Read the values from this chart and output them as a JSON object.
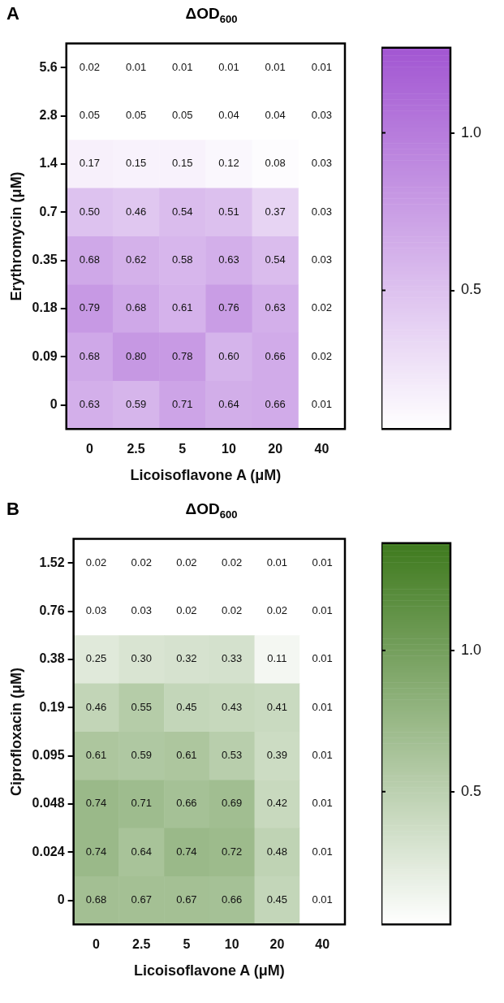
{
  "chart_data": [
    {
      "type": "heatmap",
      "title": "ΔOD$_{600}$",
      "annotations": [
        "A"
      ],
      "xlabel": "Licoisoflavone A (μM)",
      "ylabel": "Erythromycin (μM)",
      "categories": [
        "0",
        "2.5",
        "5",
        "10",
        "20",
        "40"
      ],
      "y_categories": [
        "5.6",
        "2.8",
        "1.4",
        "0.7",
        "0.35",
        "0.18",
        "0.09",
        "0"
      ],
      "cells": [
        [
          0.02,
          0.01,
          0.01,
          0.01,
          0.01,
          0.01
        ],
        [
          0.05,
          0.05,
          0.05,
          0.04,
          0.04,
          0.03
        ],
        [
          0.17,
          0.15,
          0.15,
          0.12,
          0.08,
          0.03
        ],
        [
          0.5,
          0.46,
          0.54,
          0.51,
          0.37,
          0.03
        ],
        [
          0.68,
          0.62,
          0.58,
          0.63,
          0.54,
          0.03
        ],
        [
          0.79,
          0.68,
          0.61,
          0.76,
          0.63,
          0.02
        ],
        [
          0.68,
          0.8,
          0.78,
          0.6,
          0.66,
          0.02
        ],
        [
          0.63,
          0.59,
          0.71,
          0.64,
          0.66,
          0.01
        ]
      ],
      "cell_labels": [
        [
          "0.02",
          "0.01",
          "0.01",
          "0.01",
          "0.01",
          "0.01"
        ],
        [
          "0.05",
          "0.05",
          "0.05",
          "0.04",
          "0.04",
          "0.03"
        ],
        [
          "0.17",
          "0.15",
          "0.15",
          "0.12",
          "0.08",
          "0.03"
        ],
        [
          "0.50",
          "0.46",
          "0.54",
          "0.51",
          "0.37",
          "0.03"
        ],
        [
          "0.68",
          "0.62",
          "0.58",
          "0.63",
          "0.54",
          "0.03"
        ],
        [
          "0.79",
          "0.68",
          "0.61",
          "0.76",
          "0.63",
          "0.02"
        ],
        [
          "0.68",
          "0.80",
          "0.78",
          "0.60",
          "0.66",
          "0.02"
        ],
        [
          "0.63",
          "0.59",
          "0.71",
          "0.64",
          "0.66",
          "0.01"
        ]
      ],
      "data_labels": true,
      "clim": [
        0.06,
        1.27
      ],
      "cticks": [
        0.5,
        {
          "value": 1.0,
          "label": "1.0"
        }
      ],
      "colors": [
        "#ffffff",
        "#a256d2"
      ]
    },
    {
      "type": "heatmap",
      "title": "ΔOD$_{600}$",
      "annotations": [
        "B"
      ],
      "xlabel": "Licoisoflavone A (μM)",
      "ylabel": "Ciprofloxacin (μM)",
      "categories": [
        "0",
        "2.5",
        "5",
        "10",
        "20",
        "40"
      ],
      "y_categories": [
        "1.52",
        "0.76",
        "0.38",
        "0.19",
        "0.095",
        "0.048",
        "0.024",
        "0"
      ],
      "cells": [
        [
          0.02,
          0.02,
          0.02,
          0.02,
          0.01,
          0.01
        ],
        [
          0.03,
          0.03,
          0.02,
          0.02,
          0.02,
          0.01
        ],
        [
          0.25,
          0.3,
          0.32,
          0.33,
          0.11,
          0.01
        ],
        [
          0.46,
          0.55,
          0.45,
          0.43,
          0.41,
          0.01
        ],
        [
          0.61,
          0.59,
          0.61,
          0.53,
          0.39,
          0.01
        ],
        [
          0.74,
          0.71,
          0.66,
          0.69,
          0.42,
          0.01
        ],
        [
          0.74,
          0.64,
          0.74,
          0.72,
          0.48,
          0.01
        ],
        [
          0.68,
          0.67,
          0.67,
          0.66,
          0.45,
          0.01
        ]
      ],
      "cell_labels": [
        [
          "0.02",
          "0.02",
          "0.02",
          "0.02",
          "0.01",
          "0.01"
        ],
        [
          "0.03",
          "0.03",
          "0.02",
          "0.02",
          "0.02",
          "0.01"
        ],
        [
          "0.25",
          "0.30",
          "0.32",
          "0.33",
          "0.11",
          "0.01"
        ],
        [
          "0.46",
          "0.55",
          "0.45",
          "0.43",
          "0.41",
          "0.01"
        ],
        [
          "0.61",
          "0.59",
          "0.61",
          "0.53",
          "0.39",
          "0.01"
        ],
        [
          "0.74",
          "0.71",
          "0.66",
          "0.69",
          "0.42",
          "0.01"
        ],
        [
          "0.74",
          "0.64",
          "0.74",
          "0.72",
          "0.48",
          "0.01"
        ],
        [
          "0.68",
          "0.67",
          "0.67",
          "0.66",
          "0.45",
          "0.01"
        ]
      ],
      "data_labels": true,
      "clim": [
        0.03,
        1.38
      ],
      "cticks": [
        0.5,
        {
          "value": 1.0,
          "label": "1.0"
        }
      ],
      "colors": [
        "#ffffff",
        "#3f7a1e"
      ]
    }
  ]
}
